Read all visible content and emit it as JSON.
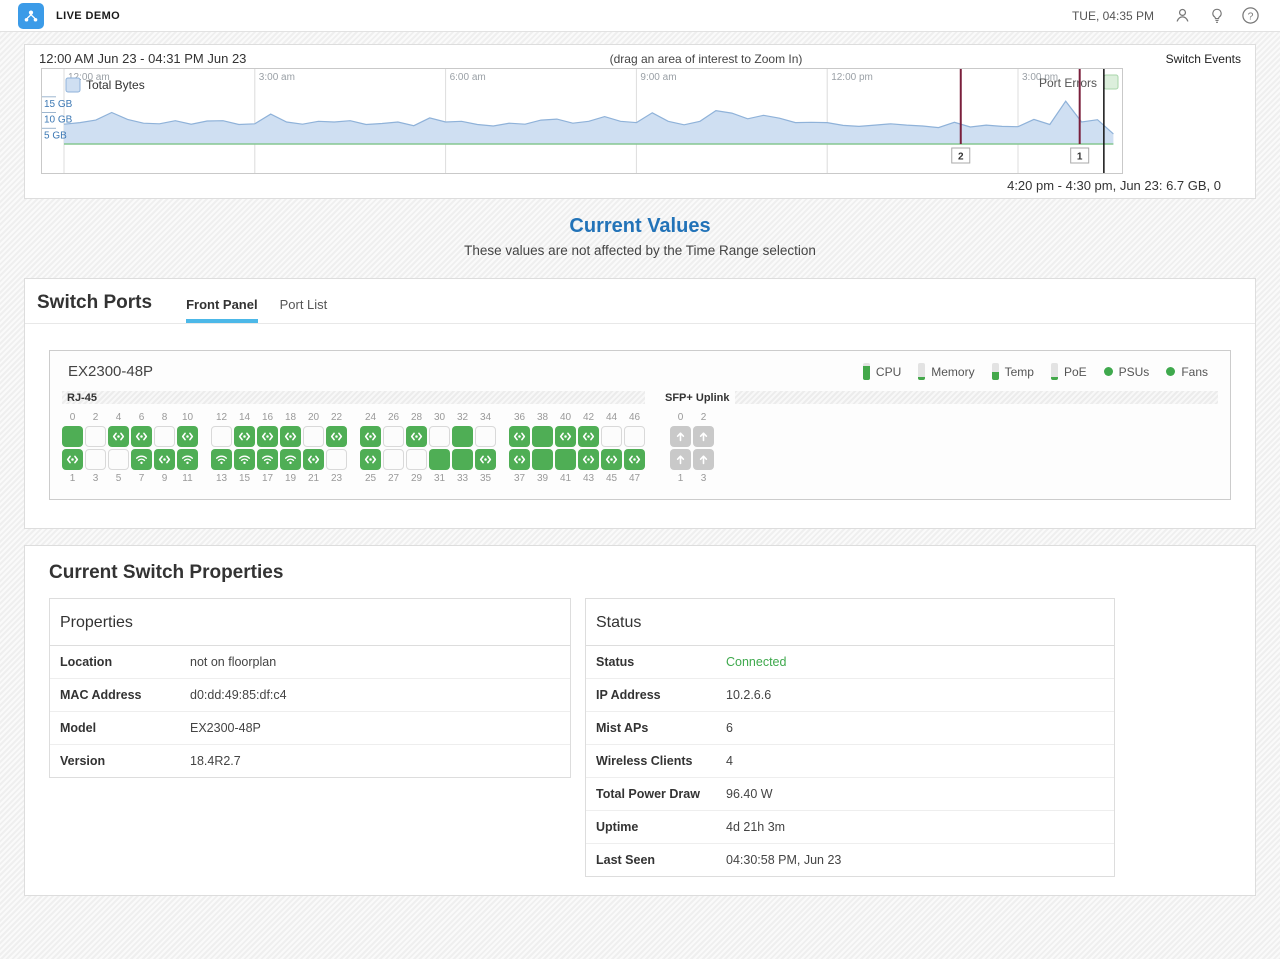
{
  "header": {
    "brand": "LIVE DEMO",
    "time": "TUE, 04:35 PM",
    "icons": [
      "user-icon",
      "lightbulb-icon",
      "help-icon"
    ],
    "logo_color": "#3b9be8"
  },
  "timeline": {
    "range_label": "12:00 AM Jun 23 - 04:31 PM Jun 23",
    "drag_hint": "(drag an area of interest to Zoom In)",
    "events_label": "Switch Events",
    "tooltip": "4:20 pm - 4:30 pm, Jun 23: 6.7 GB, 0"
  },
  "chart_data": {
    "type": "area",
    "title": "Total Bytes over time with Port Errors events",
    "x_ticks": [
      "12:00 am",
      "3:00 am",
      "6:00 am",
      "9:00 am",
      "12:00 pm",
      "3:00 pm"
    ],
    "x_tick_hours": [
      0,
      3,
      6,
      9,
      12,
      15
    ],
    "x_range_hours": [
      0,
      16.52
    ],
    "y_ticks": [
      "5 GB",
      "10 GB",
      "15 GB"
    ],
    "y_tick_values": [
      5,
      10,
      15
    ],
    "ylim": [
      0,
      24
    ],
    "legend": [
      "Total Bytes",
      "Port Errors"
    ],
    "series": [
      {
        "name": "Total Bytes",
        "unit": "GB",
        "step_hours": 0.25,
        "values": [
          6.3,
          6.8,
          7.6,
          10.0,
          7.8,
          6.6,
          6.4,
          7.4,
          6.3,
          7.3,
          7.4,
          6.2,
          6.4,
          9.5,
          7.0,
          6.3,
          7.2,
          7.0,
          7.4,
          6.2,
          6.5,
          7.0,
          5.8,
          8.3,
          7.0,
          7.2,
          6.2,
          5.7,
          6.6,
          6.3,
          7.6,
          7.9,
          6.6,
          7.2,
          8.7,
          7.2,
          6.8,
          9.9,
          7.2,
          6.1,
          7.2,
          10.6,
          9.8,
          8.0,
          9.1,
          8.2,
          6.8,
          6.9,
          6.8,
          5.9,
          5.6,
          6.0,
          6.4,
          6.0,
          5.7,
          5.2,
          6.9,
          5.4,
          6.0,
          5.6,
          5.5,
          7.8,
          6.2,
          13.6,
          7.0,
          7.7,
          3.2
        ],
        "fill_color": "#cfdff2",
        "line_color": "#8fb2d9"
      },
      {
        "name": "Port Errors",
        "unit": "count",
        "constant_value": 0,
        "line_color": "#86c791"
      }
    ],
    "events": [
      {
        "label": "2",
        "hour": 14.1
      },
      {
        "label": "1",
        "hour": 15.97
      }
    ],
    "event_line_color": "#7a1f3c",
    "cursor_hour": 16.35
  },
  "current_values": {
    "title": "Current Values",
    "subtitle": "These values are not affected by the Time Range selection"
  },
  "switch_ports": {
    "title": "Switch Ports",
    "tabs": [
      {
        "label": "Front Panel",
        "active": true
      },
      {
        "label": "Port List",
        "active": false
      }
    ]
  },
  "switch_panel": {
    "model": "EX2300-48P",
    "rj45_label": "RJ-45",
    "sfp_label": "SFP+ Uplink",
    "gauges": [
      {
        "label": "CPU",
        "level": 0.85
      },
      {
        "label": "Memory",
        "level": 0.2
      },
      {
        "label": "Temp",
        "level": 0.5
      },
      {
        "label": "PoE",
        "level": 0.2
      }
    ],
    "dots": [
      {
        "label": "PSUs"
      },
      {
        "label": "Fans"
      }
    ],
    "port_green": "#4fae55",
    "port_states": [
      "solid",
      "wired",
      "empty",
      "empty",
      "wired",
      "empty",
      "wired",
      "wifi",
      "empty",
      "wired",
      "wired",
      "wifi",
      "empty",
      "wifi",
      "wired",
      "wifi",
      "wired",
      "wifi",
      "wired",
      "wifi",
      "empty",
      "wired",
      "wired",
      "empty",
      "wired",
      "wired",
      "empty",
      "empty",
      "wired",
      "empty",
      "empty",
      "solid",
      "solid",
      "solid",
      "empty",
      "wired",
      "wired",
      "wired",
      "solid",
      "solid",
      "wired",
      "solid",
      "wired",
      "wired",
      "empty",
      "wired",
      "empty",
      "wired"
    ],
    "uplink_top_numbers": [
      "0",
      "2"
    ],
    "uplink_bottom_numbers": [
      "1",
      "3"
    ]
  },
  "properties_card": {
    "title": "Current Switch Properties",
    "tables": [
      {
        "name": "Properties",
        "rows": [
          {
            "label": "Location",
            "value": "not on floorplan"
          },
          {
            "label": "MAC Address",
            "value": "d0:dd:49:85:df:c4"
          },
          {
            "label": "Model",
            "value": "EX2300-48P"
          },
          {
            "label": "Version",
            "value": "18.4R2.7"
          }
        ]
      },
      {
        "name": "Status",
        "rows": [
          {
            "label": "Status",
            "value": "Connected",
            "color": "green"
          },
          {
            "label": "IP Address",
            "value": "10.2.6.6"
          },
          {
            "label": "Mist APs",
            "value": "6"
          },
          {
            "label": "Wireless Clients",
            "value": "4"
          },
          {
            "label": "Total Power Draw",
            "value": "96.40 W"
          },
          {
            "label": "Uptime",
            "value": "4d 21h 3m"
          },
          {
            "label": "Last Seen",
            "value": "04:30:58 PM, Jun 23"
          }
        ]
      }
    ]
  }
}
